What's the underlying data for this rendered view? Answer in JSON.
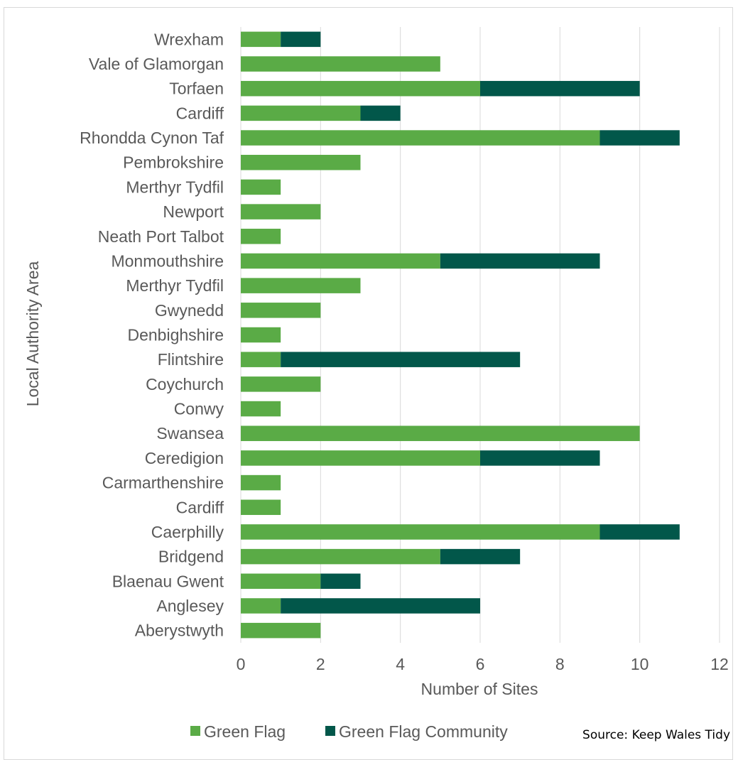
{
  "chart_data": {
    "type": "bar",
    "orientation": "horizontal",
    "stacked": true,
    "categories": [
      "Wrexham",
      "Vale of Glamorgan",
      "Torfaen",
      "Cardiff",
      "Rhondda Cynon Taf",
      "Pembrokshire",
      "Merthyr Tydfil",
      "Newport",
      "Neath Port Talbot",
      "Monmouthshire",
      "Merthyr Tydfil",
      "Gwynedd",
      "Denbighshire",
      "Flintshire",
      "Coychurch",
      "Conwy",
      "Swansea",
      "Ceredigion",
      "Carmarthenshire",
      "Cardiff",
      "Caerphilly",
      "Bridgend",
      "Blaenau Gwent",
      "Anglesey",
      "Aberystwyth"
    ],
    "series": [
      {
        "name": "Green Flag",
        "color": "#5aab46",
        "values": [
          1,
          5,
          6,
          3,
          9,
          3,
          1,
          2,
          1,
          5,
          3,
          2,
          1,
          1,
          2,
          1,
          10,
          6,
          1,
          1,
          9,
          5,
          2,
          1,
          2
        ]
      },
      {
        "name": "Green Flag Community",
        "color": "#02574a",
        "values": [
          1,
          0,
          4,
          1,
          2,
          0,
          0,
          0,
          0,
          4,
          0,
          0,
          0,
          6,
          0,
          0,
          0,
          3,
          0,
          0,
          2,
          2,
          1,
          5,
          0
        ]
      }
    ],
    "xlabel": "Number of Sites",
    "ylabel": "Local Authority Area",
    "xlim": [
      0,
      12
    ],
    "xticks": [
      "0",
      "2",
      "4",
      "6",
      "8",
      "10",
      "12"
    ],
    "grid": "vertical",
    "legend_position": "bottom",
    "source": "Source: Keep Wales Tidy"
  }
}
